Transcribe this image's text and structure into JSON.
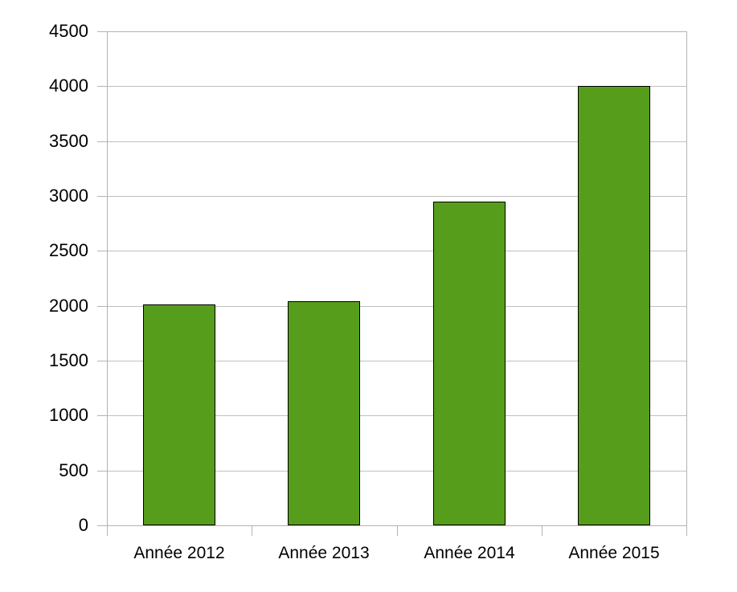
{
  "chart_data": {
    "type": "bar",
    "categories": [
      "Année 2012",
      "Année 2013",
      "Année 2014",
      "Année 2015"
    ],
    "values": [
      2010,
      2040,
      2950,
      4000
    ],
    "title": "",
    "xlabel": "",
    "ylabel": "",
    "ylim": [
      0,
      4500
    ],
    "ytick_step": 500,
    "ytick_labels": [
      "0",
      "500",
      "1000",
      "1500",
      "2000",
      "2500",
      "3000",
      "3500",
      "4000",
      "4500"
    ],
    "grid": true,
    "legend_position": "none",
    "colors": {
      "bar_fill": "#579d1c",
      "bar_border": "#000000",
      "axis": "#b3b3b3",
      "grid": "#c0c0c0",
      "text": "#000000",
      "background": "#ffffff"
    }
  }
}
